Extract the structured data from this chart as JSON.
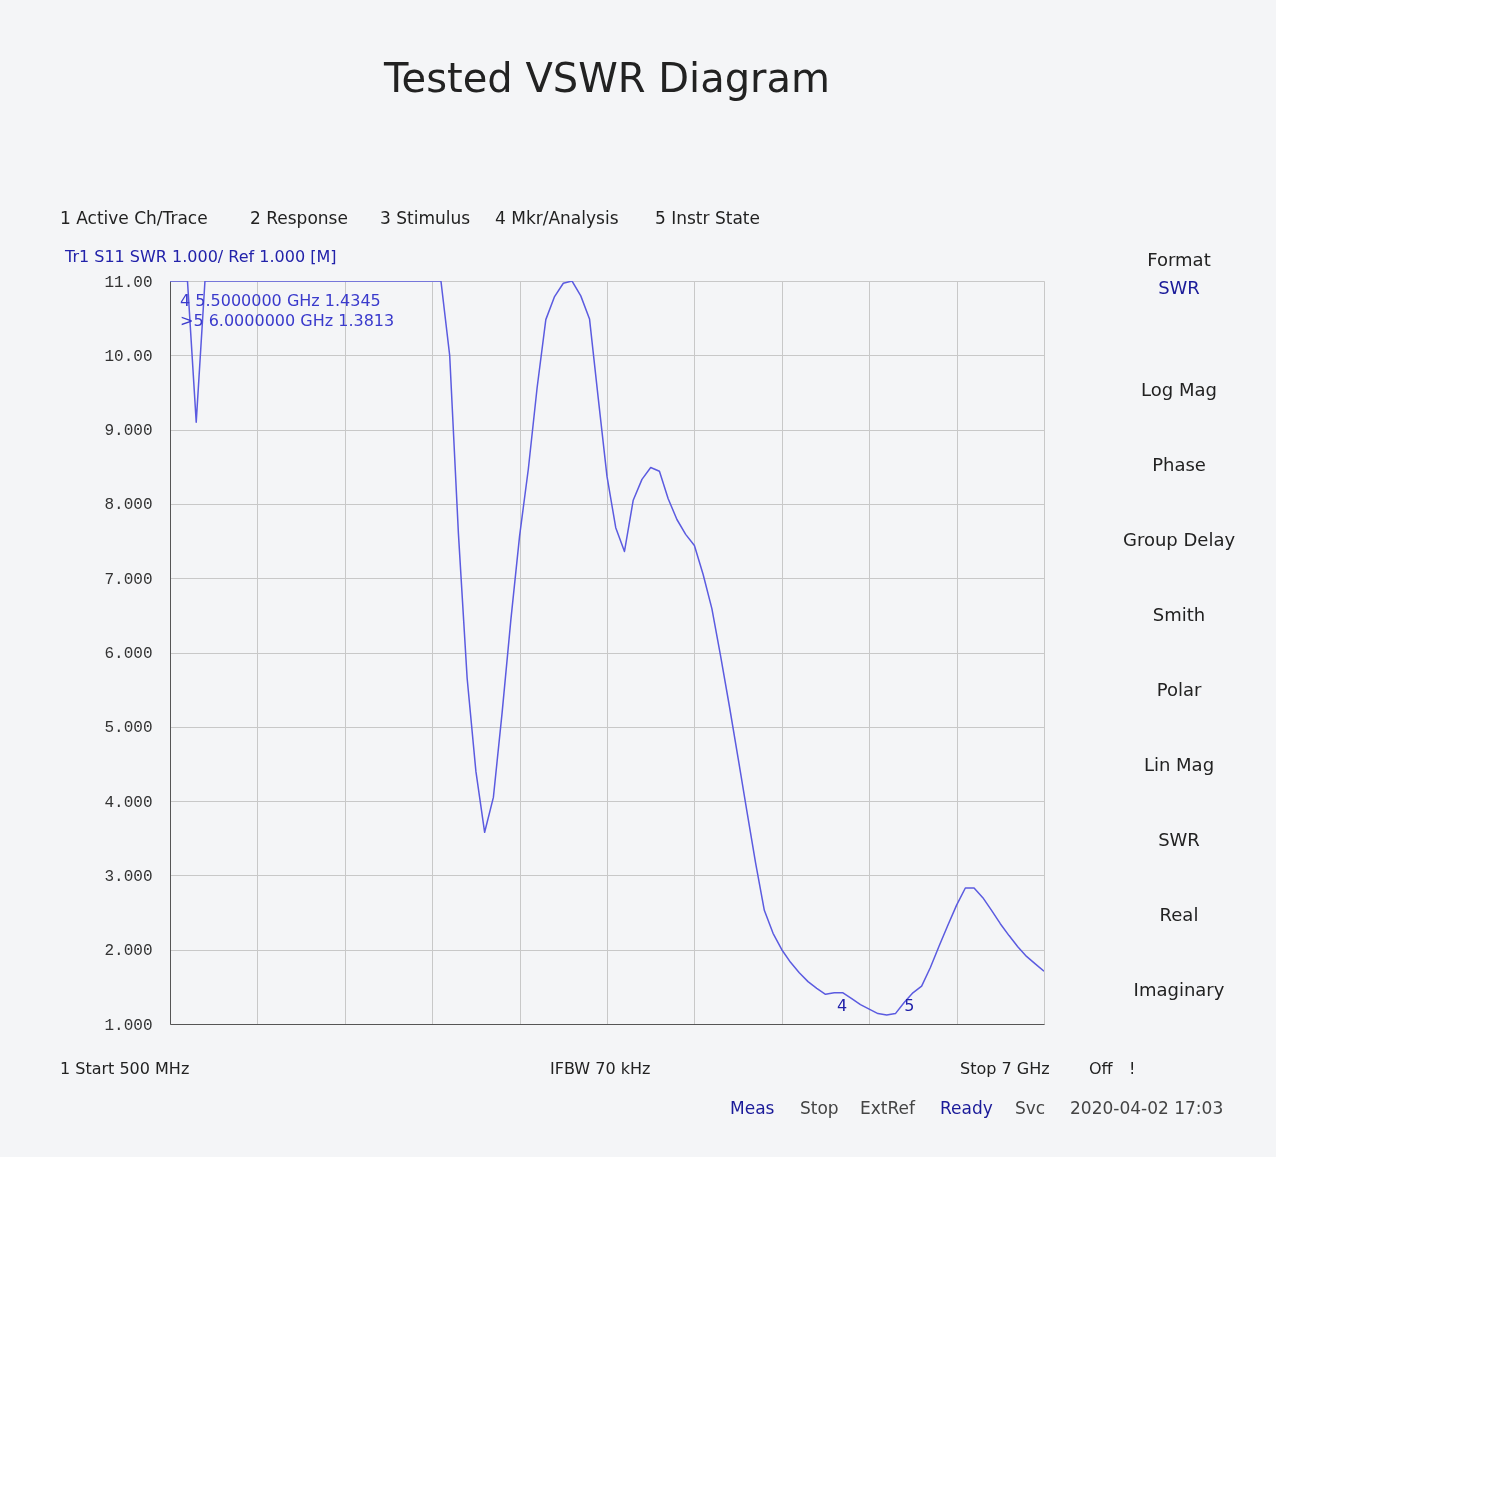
{
  "chart_data": {
    "type": "line",
    "title": "Tested VSWR Diagram",
    "categories": [
      null,
      null,
      null,
      null,
      null,
      null,
      null,
      null,
      null,
      null,
      null,
      null,
      null,
      null,
      null,
      null,
      null,
      null,
      null,
      null,
      null,
      null,
      null,
      null,
      null,
      null,
      null,
      null,
      null,
      null,
      null,
      null,
      null,
      null,
      null,
      null,
      null,
      null,
      null,
      null,
      null,
      null,
      null,
      null,
      null,
      null,
      null,
      null,
      null,
      null,
      null,
      null,
      null,
      null,
      null,
      null,
      null,
      null,
      null,
      null,
      null,
      null,
      null,
      null,
      null,
      null,
      null,
      null,
      null,
      null,
      null,
      null,
      null,
      null,
      null,
      null,
      null,
      null,
      null,
      null,
      null,
      null,
      null,
      null,
      null,
      null,
      null,
      null,
      null,
      null,
      null,
      null,
      null,
      null,
      null,
      null,
      null,
      null,
      null,
      null,
      null
    ],
    "series": [
      {
        "color": "#5b5be0",
        "values": [
          11,
          11,
          11.0,
          9.1,
          11,
          11,
          11,
          11,
          11,
          11,
          11,
          11,
          11,
          11,
          11,
          11,
          11,
          11,
          11,
          11,
          11,
          11,
          11,
          11,
          11,
          11,
          11,
          11,
          11,
          11,
          11,
          11,
          10.0,
          7.6,
          5.65,
          4.4,
          3.58,
          4.05,
          5.19,
          6.44,
          7.57,
          8.47,
          9.56,
          10.48,
          10.79,
          10.97,
          11.0,
          10.8,
          10.49,
          9.42,
          8.37,
          7.68,
          7.36,
          8.05,
          8.33,
          8.49,
          8.44,
          8.07,
          7.79,
          7.59,
          7.44,
          7.05,
          6.59,
          5.95,
          5.28,
          4.58,
          3.87,
          3.17,
          2.53,
          2.22,
          2.0,
          1.83,
          1.69,
          1.57,
          1.48,
          1.4,
          1.42,
          1.42,
          1.34,
          1.26,
          1.2,
          1.14,
          1.12,
          1.14,
          1.29,
          1.42,
          1.51,
          1.76,
          2.05,
          2.33,
          2.6,
          2.83,
          2.83,
          2.7,
          2.53,
          2.35,
          2.19,
          2.04,
          1.91,
          1.81,
          1.71
        ]
      }
    ],
    "ylim": [
      1,
      11
    ],
    "yticks": [
      {
        "value": 1,
        "label": "1.000"
      },
      {
        "value": 2,
        "label": "2.000"
      },
      {
        "value": 3,
        "label": "3.000"
      },
      {
        "value": 4,
        "label": "4.000"
      },
      {
        "value": 5,
        "label": "5.000"
      },
      {
        "value": 6,
        "label": "6.000"
      },
      {
        "value": 7,
        "label": "7.000"
      },
      {
        "value": 8,
        "label": "8.000"
      },
      {
        "value": 9,
        "label": "9.000"
      },
      {
        "value": 10,
        "label": "10.00"
      },
      {
        "value": 11,
        "label": "11.00"
      }
    ],
    "grid": true,
    "annotations": [
      "1 Active Ch/Trace",
      "2 Response",
      "3 Stimulus",
      "4 Mkr/Analysis",
      "5 Instr State",
      "Tr1 S11 SWR 1.000/ Ref 1.000 [M]",
      "4   5.5000000 GHz   1.4345",
      ">5   6.0000000 GHz   1.3813",
      "1 Start 500 MHz",
      "IFBW 70 kHz",
      "Stop 7 GHz",
      "Off",
      "!",
      "Meas",
      "Stop",
      "ExtRef",
      "Ready",
      "Svc",
      "2020-04-02 17:03",
      "Format",
      "SWR",
      "Log Mag",
      "Phase",
      "Group Delay",
      "Smith",
      "Polar",
      "Lin Mag",
      "SWR",
      "Real",
      "Imaginary",
      "4",
      "5"
    ]
  }
}
